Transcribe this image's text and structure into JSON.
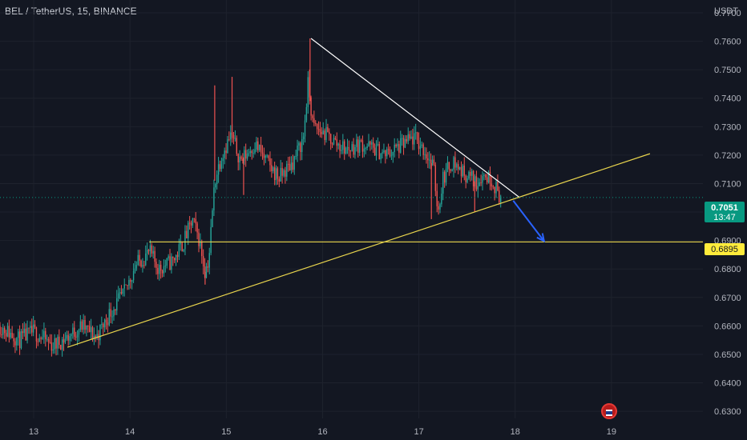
{
  "header": {
    "title": "BEL / TetherUS, 15, BINANCE"
  },
  "price_axis": {
    "unit": "USDT"
  },
  "current_price": {
    "value": "0.7051",
    "countdown": "13:47",
    "color": "#089981"
  },
  "level_tag": {
    "value": "0.6895",
    "color": "#ffeb3b"
  },
  "chart_data": {
    "type": "candlestick",
    "title": "BEL / TetherUS, 15, BINANCE",
    "ylabel": "USDT",
    "ylim": [
      0.6275,
      0.7745
    ],
    "xlim": [
      12.65,
      19.95
    ],
    "y_ticks": [
      "0.6300",
      "0.6400",
      "0.6500",
      "0.6600",
      "0.6700",
      "0.6800",
      "0.6900",
      "0.7000",
      "0.7100",
      "0.7200",
      "0.7300",
      "0.7400",
      "0.7500",
      "0.7600",
      "0.7700"
    ],
    "x_ticks": [
      "13",
      "14",
      "15",
      "16",
      "17",
      "18",
      "19"
    ],
    "grid": true,
    "up_color": "#26a69a",
    "down_color": "#ef5350",
    "last_price": 0.7051,
    "path": [
      [
        12.65,
        0.66
      ],
      [
        12.85,
        0.655
      ],
      [
        13.0,
        0.658
      ],
      [
        13.2,
        0.653
      ],
      [
        13.35,
        0.656
      ],
      [
        13.5,
        0.66
      ],
      [
        13.65,
        0.656
      ],
      [
        13.8,
        0.665
      ],
      [
        13.95,
        0.672
      ],
      [
        14.05,
        0.681
      ],
      [
        14.2,
        0.686
      ],
      [
        14.3,
        0.68
      ],
      [
        14.45,
        0.683
      ],
      [
        14.55,
        0.689
      ],
      [
        14.65,
        0.697
      ],
      [
        14.72,
        0.69
      ],
      [
        14.78,
        0.679
      ],
      [
        14.82,
        0.684
      ],
      [
        14.88,
        0.711
      ],
      [
        14.95,
        0.72
      ],
      [
        15.05,
        0.727
      ],
      [
        15.15,
        0.718
      ],
      [
        15.3,
        0.724
      ],
      [
        15.45,
        0.716
      ],
      [
        15.55,
        0.712
      ],
      [
        15.7,
        0.718
      ],
      [
        15.8,
        0.726
      ],
      [
        15.85,
        0.745
      ],
      [
        15.9,
        0.73
      ],
      [
        16.0,
        0.728
      ],
      [
        16.15,
        0.724
      ],
      [
        16.25,
        0.722
      ],
      [
        16.4,
        0.724
      ],
      [
        16.55,
        0.722
      ],
      [
        16.65,
        0.72
      ],
      [
        16.8,
        0.723
      ],
      [
        16.95,
        0.726
      ],
      [
        17.05,
        0.722
      ],
      [
        17.15,
        0.716
      ],
      [
        17.2,
        0.7
      ],
      [
        17.25,
        0.712
      ],
      [
        17.35,
        0.718
      ],
      [
        17.45,
        0.714
      ],
      [
        17.55,
        0.712
      ],
      [
        17.6,
        0.71
      ],
      [
        17.65,
        0.713
      ],
      [
        17.75,
        0.712
      ],
      [
        17.85,
        0.705
      ]
    ],
    "spikes": [
      {
        "x": 14.88,
        "high": 0.7445
      },
      {
        "x": 15.06,
        "high": 0.7475
      },
      {
        "x": 15.87,
        "high": 0.761
      },
      {
        "x": 14.78,
        "low": 0.6745
      },
      {
        "x": 15.18,
        "low": 0.706
      },
      {
        "x": 17.13,
        "low": 0.6975
      },
      {
        "x": 17.58,
        "low": 0.7
      }
    ],
    "lines": [
      {
        "name": "descending-resistance",
        "color": "#ffffff",
        "from": [
          15.88,
          0.761
        ],
        "to": [
          18.05,
          0.705
        ]
      },
      {
        "name": "ascending-support",
        "color": "#e8d44d",
        "from": [
          13.35,
          0.6525
        ],
        "to": [
          19.4,
          0.7205
        ]
      },
      {
        "name": "horizontal-support",
        "color": "#e8d44d",
        "from": [
          14.2,
          0.6895
        ],
        "to": [
          19.95,
          0.6895
        ]
      }
    ],
    "arrow": {
      "color": "#2962ff",
      "from": [
        17.98,
        0.704
      ],
      "to": [
        18.3,
        0.6898
      ]
    }
  }
}
